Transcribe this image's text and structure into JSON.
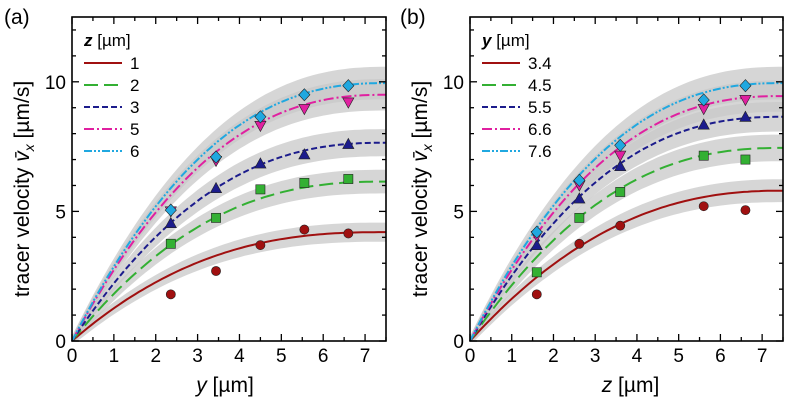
{
  "chart_data": [
    {
      "type": "line",
      "panel_label": "(a)",
      "xlabel_var": "y",
      "xlabel_unit": " [µm]",
      "ylabel_prefix": "tracer velocity ",
      "ylabel_var": "v̄",
      "ylabel_sub": "x",
      "ylabel_unit": "  [µm/s]",
      "xlim": [
        0,
        7.5
      ],
      "ylim": [
        0,
        12.5
      ],
      "xticks": [
        0,
        1,
        2,
        3,
        4,
        5,
        6,
        7
      ],
      "yticks": [
        0,
        5,
        10
      ],
      "legend": {
        "title_var": "z",
        "title_unit": " [µm]",
        "placement": "top-left"
      },
      "series": [
        {
          "name": "1",
          "color": "#a01010",
          "dash": "",
          "marker": "circle",
          "plateau": 4.2,
          "curvature": 0.5,
          "points": [
            [
              2.36,
              1.8
            ],
            [
              3.44,
              2.7
            ],
            [
              4.5,
              3.7
            ],
            [
              5.55,
              4.3
            ],
            [
              6.6,
              4.15
            ]
          ]
        },
        {
          "name": "2",
          "color": "#33b033",
          "dash": "14 6",
          "marker": "square",
          "plateau": 6.15,
          "curvature": 0.45,
          "points": [
            [
              2.36,
              3.75
            ],
            [
              3.44,
              4.75
            ],
            [
              4.5,
              5.85
            ],
            [
              5.55,
              6.1
            ],
            [
              6.6,
              6.25
            ]
          ]
        },
        {
          "name": "3",
          "color": "#1c1c8c",
          "dash": "6 3",
          "marker": "triangle-up",
          "plateau": 7.65,
          "curvature": 0.4,
          "points": [
            [
              2.36,
              4.55
            ],
            [
              3.44,
              5.9
            ],
            [
              4.5,
              6.85
            ],
            [
              5.55,
              7.2
            ],
            [
              6.6,
              7.6
            ]
          ]
        },
        {
          "name": "5",
          "color": "#e020a0",
          "dash": "10 3 2 3",
          "marker": "triangle-down",
          "plateau": 9.5,
          "curvature": 0.38,
          "points": [
            [
              2.36,
              5.0
            ],
            [
              3.44,
              6.95
            ],
            [
              4.5,
              8.3
            ],
            [
              5.55,
              8.95
            ],
            [
              6.6,
              9.2
            ]
          ]
        },
        {
          "name": "6",
          "color": "#20a8e0",
          "dash": "8 2 2 2 2 2",
          "marker": "diamond",
          "plateau": 9.95,
          "curvature": 0.38,
          "points": [
            [
              2.36,
              5.05
            ],
            [
              3.44,
              7.1
            ],
            [
              4.5,
              8.65
            ],
            [
              5.55,
              9.5
            ],
            [
              6.6,
              9.85
            ]
          ]
        }
      ]
    },
    {
      "type": "line",
      "panel_label": "(b)",
      "xlabel_var": "z",
      "xlabel_unit": " [µm]",
      "ylabel_prefix": "tracer velocity ",
      "ylabel_var": "v̄",
      "ylabel_sub": "x",
      "ylabel_unit": "  [µm/s]",
      "xlim": [
        0,
        7.5
      ],
      "ylim": [
        0,
        12.5
      ],
      "xticks": [
        0,
        1,
        2,
        3,
        4,
        5,
        6,
        7
      ],
      "yticks": [
        0,
        5,
        10
      ],
      "legend": {
        "title_var": "y",
        "title_unit": " [µm]",
        "placement": "top-left"
      },
      "series": [
        {
          "name": "3.4",
          "color": "#a01010",
          "dash": "",
          "marker": "circle",
          "plateau": 5.8,
          "curvature": 0.3,
          "points": [
            [
              1.6,
              1.8
            ],
            [
              2.62,
              3.75
            ],
            [
              3.6,
              4.45
            ],
            [
              5.6,
              5.2
            ],
            [
              6.6,
              5.05
            ]
          ]
        },
        {
          "name": "4.5",
          "color": "#33b033",
          "dash": "14 6",
          "marker": "square",
          "plateau": 7.45,
          "curvature": 0.38,
          "points": [
            [
              1.6,
              2.65
            ],
            [
              2.62,
              4.75
            ],
            [
              3.6,
              5.75
            ],
            [
              5.6,
              7.15
            ],
            [
              6.6,
              7.0
            ]
          ]
        },
        {
          "name": "5.5",
          "color": "#1c1c8c",
          "dash": "6 3",
          "marker": "triangle-up",
          "plateau": 8.65,
          "curvature": 0.4,
          "points": [
            [
              1.6,
              3.7
            ],
            [
              2.62,
              5.5
            ],
            [
              3.6,
              6.75
            ],
            [
              5.6,
              8.35
            ],
            [
              6.6,
              8.65
            ]
          ]
        },
        {
          "name": "6.6",
          "color": "#e020a0",
          "dash": "10 3 2 3",
          "marker": "triangle-down",
          "plateau": 9.45,
          "curvature": 0.4,
          "points": [
            [
              1.6,
              4.05
            ],
            [
              2.62,
              6.0
            ],
            [
              3.6,
              7.15
            ],
            [
              5.6,
              8.95
            ],
            [
              6.6,
              9.3
            ]
          ]
        },
        {
          "name": "7.6",
          "color": "#20a8e0",
          "dash": "8 2 2 2 2 2",
          "marker": "diamond",
          "plateau": 9.95,
          "curvature": 0.4,
          "points": [
            [
              1.6,
              4.2
            ],
            [
              2.62,
              6.2
            ],
            [
              3.6,
              7.55
            ],
            [
              5.6,
              9.3
            ],
            [
              6.6,
              9.85
            ]
          ]
        }
      ]
    }
  ]
}
